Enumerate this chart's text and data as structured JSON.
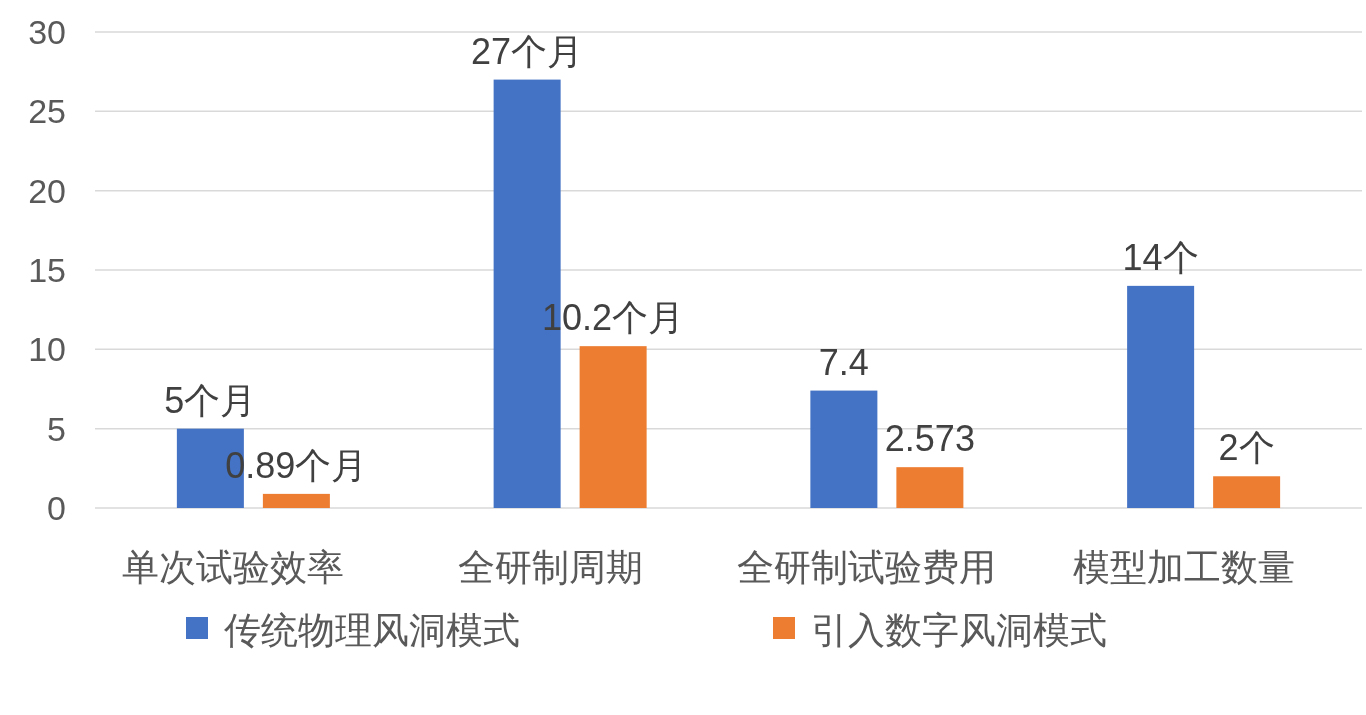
{
  "chart_data": {
    "type": "bar",
    "categories": [
      "单次试验效率",
      "全研制周期",
      "全研制试验费用",
      "模型加工数量"
    ],
    "series": [
      {
        "name": "传统物理风洞模式",
        "color": "#4472c4",
        "values": [
          5,
          27,
          7.4,
          14
        ],
        "value_labels": [
          "5个月",
          "27个月",
          "7.4",
          "14个"
        ]
      },
      {
        "name": "引入数字风洞模式",
        "color": "#ed7d31",
        "values": [
          0.89,
          10.2,
          2.573,
          2
        ],
        "value_labels": [
          "0.89个月",
          "10.2个月",
          "2.573",
          "2个"
        ]
      }
    ],
    "ylim": [
      0,
      30
    ],
    "yticks": [
      0,
      5,
      10,
      15,
      20,
      25,
      30
    ],
    "grid": "y",
    "legend": "bottom"
  }
}
